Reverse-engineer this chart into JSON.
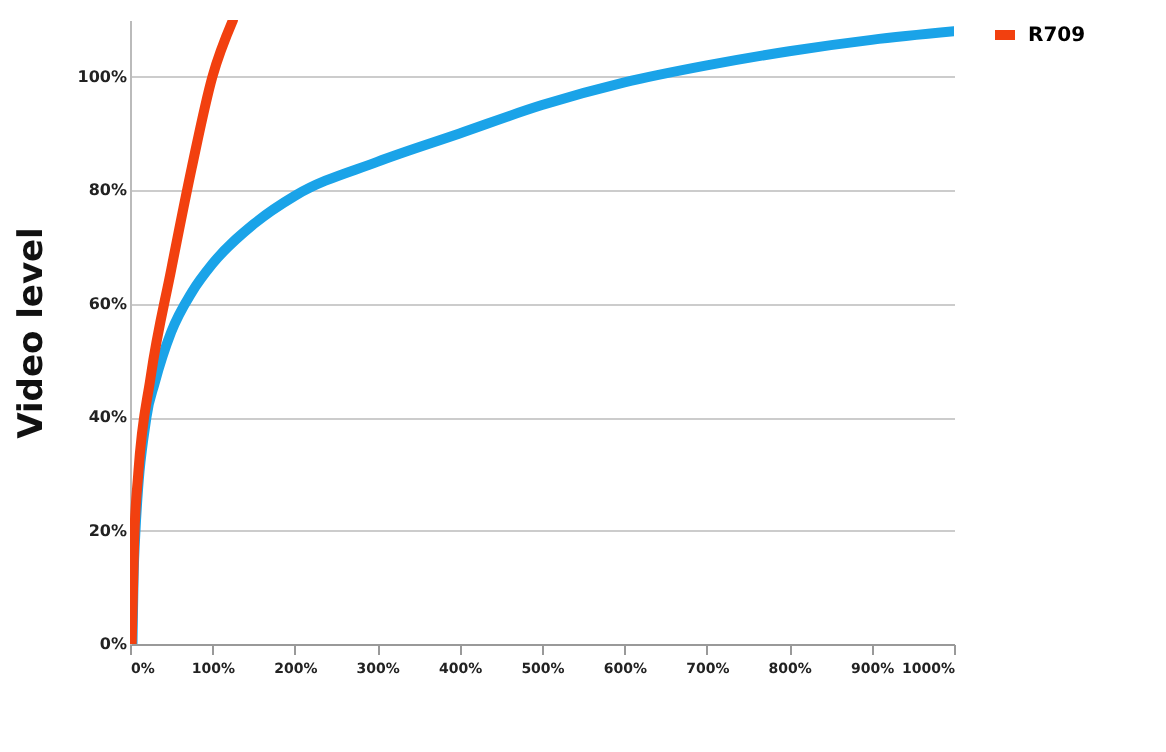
{
  "chart_data": {
    "type": "line",
    "ylabel": "Video level",
    "xlim": [
      0,
      1000
    ],
    "ylim": [
      0,
      110
    ],
    "xticks": [
      {
        "value": 0,
        "label": "0%"
      },
      {
        "value": 100,
        "label": "100%"
      },
      {
        "value": 200,
        "label": "200%"
      },
      {
        "value": 300,
        "label": "300%"
      },
      {
        "value": 400,
        "label": "400%"
      },
      {
        "value": 500,
        "label": "500%"
      },
      {
        "value": 600,
        "label": "600%"
      },
      {
        "value": 700,
        "label": "700%"
      },
      {
        "value": 800,
        "label": "800%"
      },
      {
        "value": 900,
        "label": "900%"
      },
      {
        "value": 1000,
        "label": "1000%"
      }
    ],
    "yticks": [
      {
        "value": 0,
        "label": "0%"
      },
      {
        "value": 20,
        "label": "20%"
      },
      {
        "value": 40,
        "label": "40%"
      },
      {
        "value": 60,
        "label": "60%"
      },
      {
        "value": 80,
        "label": "80%"
      },
      {
        "value": 100,
        "label": "100%"
      }
    ],
    "grid": "y",
    "legend": "right",
    "marker": "none",
    "line_style": "solid",
    "series": [
      {
        "color": "#1aa3e8",
        "x": [
          3,
          5,
          20,
          30,
          50,
          75,
          100,
          150,
          200,
          300,
          400,
          500,
          600,
          700,
          800,
          900,
          1000
        ],
        "values": [
          0,
          15,
          40,
          46,
          55,
          62,
          67,
          74,
          79,
          85,
          90,
          95,
          99,
          102,
          104.5,
          106.5,
          108
        ]
      },
      {
        "name": "R709",
        "color": "#f2400f",
        "x": [
          2,
          5,
          10,
          25,
          50,
          75,
          100,
          125
        ],
        "values": [
          0,
          18,
          30,
          47,
          66,
          84,
          100,
          110
        ]
      }
    ]
  }
}
